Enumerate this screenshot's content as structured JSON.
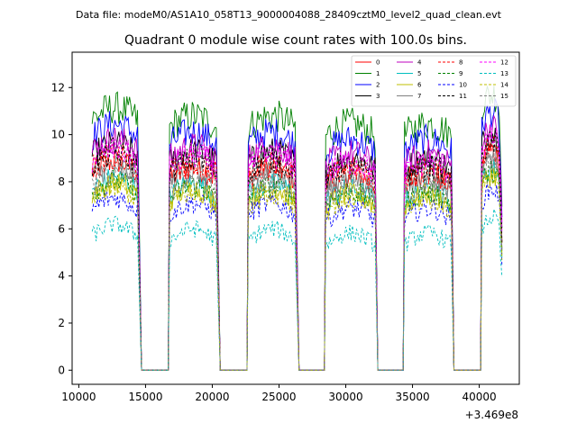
{
  "suptitle": "Data file: modeM0/AS1A10_058T13_9000004088_28409cztM0_level2_quad_clean.evt",
  "chart_data": {
    "type": "line",
    "title": "Quadrant 0 module wise count rates with 100.0s bins.",
    "xlabel": "",
    "ylabel": "",
    "x_offset_label": "+3.469e8",
    "xlim": [
      9500,
      43000
    ],
    "ylim": [
      -0.6,
      13.5
    ],
    "xticks": [
      10000,
      15000,
      20000,
      25000,
      30000,
      35000,
      40000
    ],
    "xtick_labels": [
      "10000",
      "15000",
      "20000",
      "25000",
      "30000",
      "35000",
      "40000"
    ],
    "yticks": [
      0,
      2,
      4,
      6,
      8,
      10,
      12
    ],
    "ytick_labels": [
      "0",
      "2",
      "4",
      "6",
      "8",
      "10",
      "12"
    ],
    "legend_position": "top-right",
    "bin_size_s": 100,
    "active_segments": [
      [
        11000,
        14400
      ],
      [
        16800,
        20300
      ],
      [
        22700,
        26200
      ],
      [
        28500,
        32200
      ],
      [
        34400,
        37900
      ],
      [
        40200,
        41700
      ]
    ],
    "gaps": [
      [
        14700,
        16700
      ],
      [
        20600,
        22600
      ],
      [
        26500,
        28400
      ],
      [
        32400,
        34300
      ],
      [
        38100,
        40100
      ]
    ],
    "series": [
      {
        "name": "0",
        "color": "#ff0000",
        "dash": "solid",
        "mean": 8.1
      },
      {
        "name": "1",
        "color": "#008000",
        "dash": "solid",
        "mean": 10.3
      },
      {
        "name": "2",
        "color": "#0000ff",
        "dash": "solid",
        "mean": 9.6
      },
      {
        "name": "3",
        "color": "#000000",
        "dash": "solid",
        "mean": 8.8
      },
      {
        "name": "4",
        "color": "#bf00bf",
        "dash": "solid",
        "mean": 9.0
      },
      {
        "name": "5",
        "color": "#00bfbf",
        "dash": "solid",
        "mean": 7.4
      },
      {
        "name": "6",
        "color": "#bfbf00",
        "dash": "solid",
        "mean": 7.2
      },
      {
        "name": "7",
        "color": "#808080",
        "dash": "solid",
        "mean": 7.9
      },
      {
        "name": "8",
        "color": "#ff0000",
        "dash": "dashed",
        "mean": 8.3
      },
      {
        "name": "9",
        "color": "#008000",
        "dash": "dashed",
        "mean": 7.3
      },
      {
        "name": "10",
        "color": "#0000ff",
        "dash": "dashed",
        "mean": 6.6
      },
      {
        "name": "11",
        "color": "#000000",
        "dash": "dashed",
        "mean": 8.4
      },
      {
        "name": "12",
        "color": "#ff00ff",
        "dash": "dashed",
        "mean": 8.6
      },
      {
        "name": "13",
        "color": "#00bfbf",
        "dash": "dashed",
        "mean": 5.5
      },
      {
        "name": "14",
        "color": "#bfbf00",
        "dash": "dashed",
        "mean": 7.0
      },
      {
        "name": "15",
        "color": "#808080",
        "dash": "dashed",
        "mean": 7.6
      }
    ]
  }
}
